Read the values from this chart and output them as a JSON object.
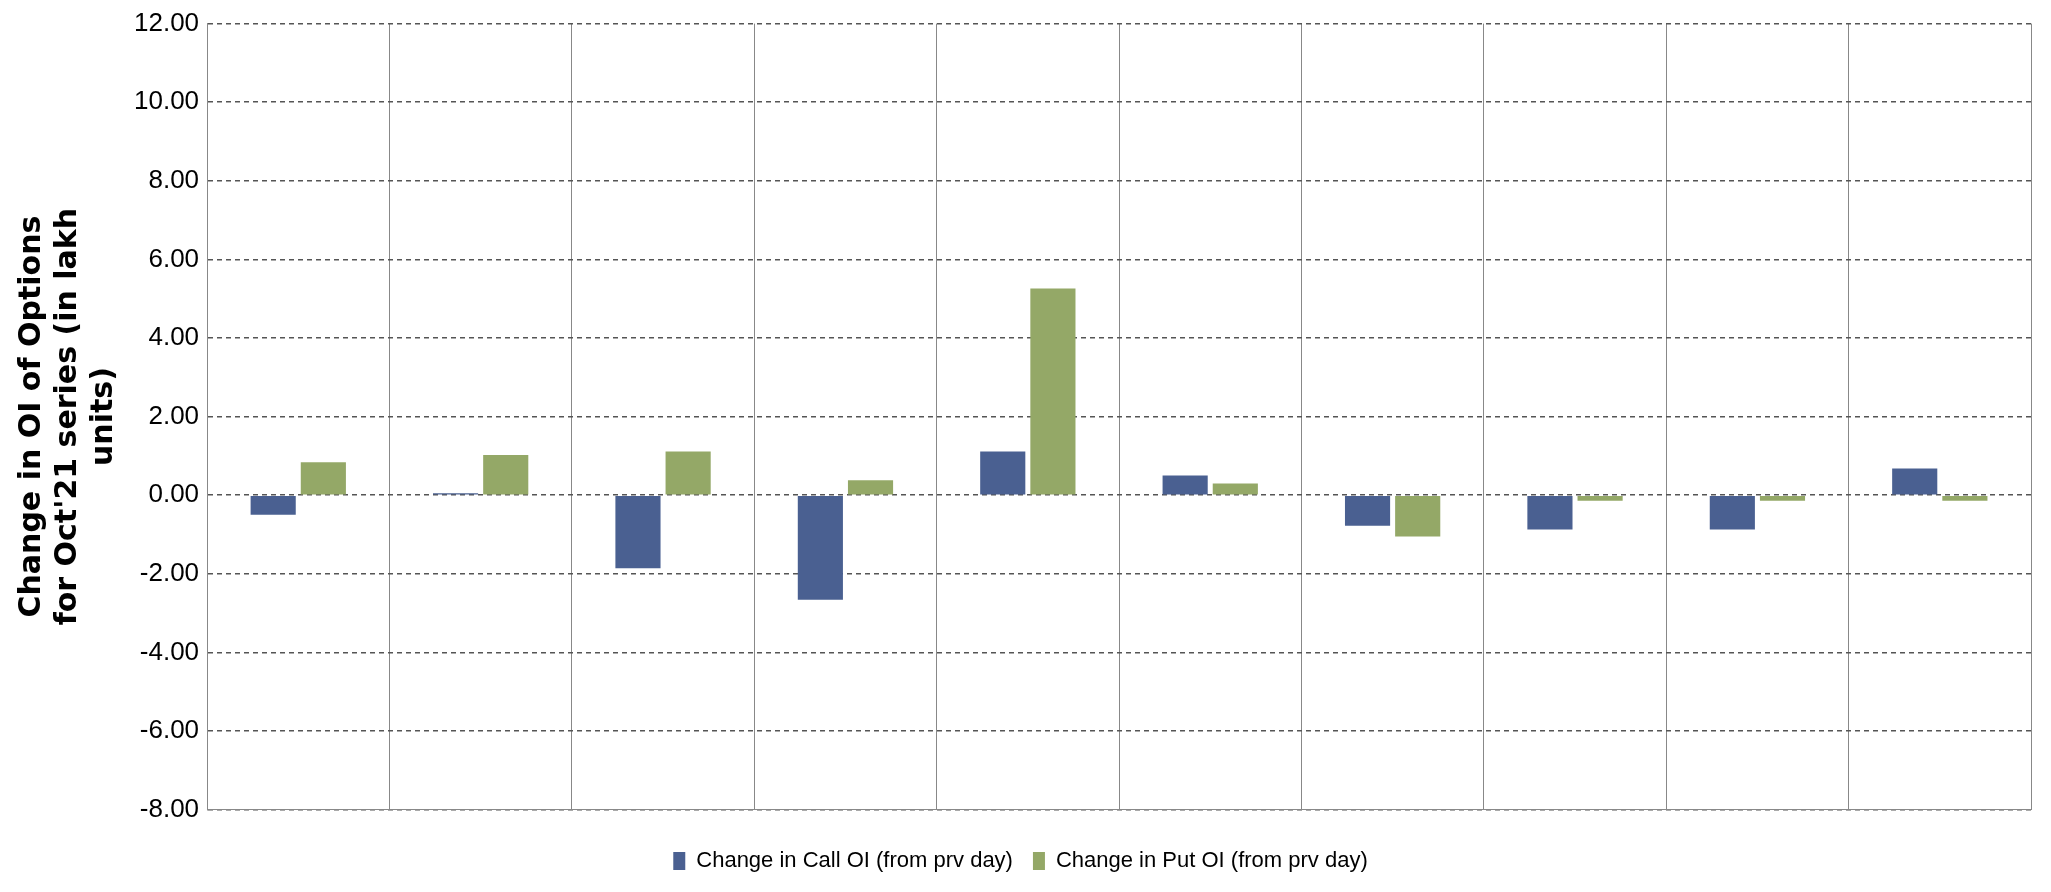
{
  "chart_data": {
    "type": "bar",
    "ylabel": "Change in OI of Options for Oct'21 series (in lakh units)",
    "categories": [
      null,
      null,
      null,
      null,
      null,
      null,
      null,
      null,
      null,
      null
    ],
    "series": [
      {
        "name": "Change in Call OI (from prv day)",
        "color": "#4a6091",
        "values": [
          -0.5,
          0.05,
          -1.86,
          -2.66,
          1.11,
          0.5,
          -0.78,
          -0.87,
          -0.87,
          0.68
        ]
      },
      {
        "name": "Change in Put OI (from prv day)",
        "color": "#94a867",
        "values": [
          0.84,
          1.02,
          1.11,
          0.38,
          5.26,
          0.3,
          -1.05,
          -0.14,
          -0.14,
          -0.14
        ]
      }
    ],
    "ylim": [
      -8,
      12
    ],
    "yticks": [
      {
        "value": -8,
        "label": "-8.00"
      },
      {
        "value": -6,
        "label": "-6.00"
      },
      {
        "value": -4,
        "label": "-4.00"
      },
      {
        "value": -2,
        "label": "-2.00"
      },
      {
        "value": 0,
        "label": "0.00"
      },
      {
        "value": 2,
        "label": "2.00"
      },
      {
        "value": 4,
        "label": "4.00"
      },
      {
        "value": 6,
        "label": "6.00"
      },
      {
        "value": 8,
        "label": "8.00"
      },
      {
        "value": 10,
        "label": "10.00"
      },
      {
        "value": 12,
        "label": "12.00"
      }
    ],
    "grid": true,
    "legend": "bottom"
  }
}
